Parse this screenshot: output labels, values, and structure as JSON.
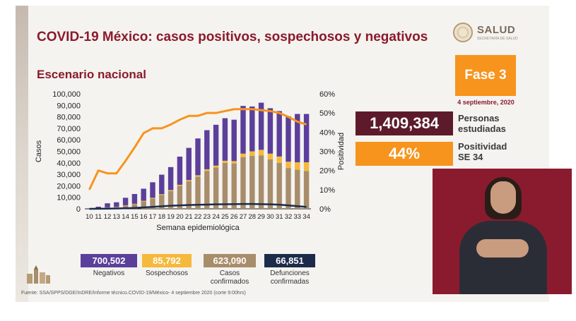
{
  "header": {
    "title": "COVID-19 México: casos positivos, sospechosos y negativos",
    "subtitle": "Escenario nacional"
  },
  "logo": {
    "name": "SALUD",
    "sub": "SECRETARÍA DE SALUD"
  },
  "phase": {
    "label": "Fase 3",
    "date": "4 septiembre, 2020"
  },
  "stats": [
    {
      "value": "1,409,384",
      "label_line1": "Personas",
      "label_line2": "estudiadas",
      "color": "#5c1a2b"
    },
    {
      "value": "44%",
      "label_line1": "Positividad",
      "label_line2": "SE 34",
      "color": "#f7941d"
    }
  ],
  "legend": [
    {
      "value": "700,502",
      "label_line1": "Negativos",
      "label_line2": "",
      "color": "#5b3f9a"
    },
    {
      "value": "85,792",
      "label_line1": "Sospechosos",
      "label_line2": "",
      "color": "#f5b93c"
    },
    {
      "value": "623,090",
      "label_line1": "Casos",
      "label_line2": "confirmados",
      "color": "#a88d6b"
    },
    {
      "value": "66,851",
      "label_line1": "Defunciones",
      "label_line2": "confirmadas",
      "color": "#1c2b4a"
    }
  ],
  "source": "Fuente: SSA/SPPS/DGE/InDRE/Informe técnico.COVID-19/México- 4 septiembre 2020 (corte 9:00hrs)",
  "chart_data": {
    "type": "bar",
    "xlabel": "Semana epidemiológica",
    "ylabel": "Casos",
    "y2label": "Positividad",
    "ylim": [
      0,
      100000
    ],
    "y2lim": [
      0,
      60
    ],
    "yticks": [
      "0",
      "10,000",
      "20,000",
      "30,000",
      "40,000",
      "50,000",
      "60,000",
      "70,000",
      "80,000",
      "90,000",
      "100,000"
    ],
    "y2ticks": [
      "0%",
      "10%",
      "20%",
      "30%",
      "40%",
      "50%",
      "60%"
    ],
    "categories": [
      "10",
      "11",
      "12",
      "13",
      "14",
      "15",
      "16",
      "17",
      "18",
      "19",
      "20",
      "21",
      "22",
      "23",
      "24",
      "25",
      "26",
      "27",
      "28",
      "29",
      "30",
      "31",
      "32",
      "33",
      "34"
    ],
    "series": [
      {
        "name": "Casos confirmados",
        "color": "#a88d6b",
        "values": [
          100,
          600,
          1200,
          1500,
          2800,
          4000,
          6500,
          9000,
          12000,
          15500,
          20000,
          24000,
          28000,
          33000,
          36000,
          40000,
          39500,
          45000,
          46000,
          46500,
          43000,
          40000,
          35500,
          34000,
          33000
        ]
      },
      {
        "name": "Sospechosos",
        "color": "#f5b93c",
        "values": [
          0,
          50,
          100,
          200,
          300,
          400,
          500,
          600,
          700,
          800,
          900,
          1000,
          1200,
          1400,
          1600,
          1800,
          2000,
          3000,
          4000,
          4800,
          5000,
          5500,
          5500,
          6500,
          7500
        ]
      },
      {
        "name": "Negativos",
        "color": "#5b3f9a",
        "values": [
          300,
          1200,
          3500,
          4000,
          6500,
          8500,
          10500,
          13500,
          17000,
          20000,
          24500,
          28000,
          32000,
          34000,
          35500,
          37000,
          36000,
          41500,
          39000,
          41000,
          39500,
          39500,
          39500,
          42000,
          42000
        ]
      },
      {
        "name": "Defunciones confirmadas",
        "type": "line",
        "color": "#1c2b4a",
        "values": [
          0,
          50,
          150,
          300,
          500,
          800,
          1200,
          1700,
          2200,
          2700,
          3000,
          3300,
          3500,
          3700,
          3900,
          4000,
          4100,
          4200,
          4200,
          4100,
          3900,
          3600,
          3000,
          2300,
          1700
        ]
      },
      {
        "name": "Positividad",
        "type": "line",
        "axis": "y2",
        "color": "#f7941d",
        "values": [
          10,
          20,
          18.5,
          18.5,
          25,
          32,
          39.5,
          42,
          42,
          44,
          46.5,
          48.5,
          48.5,
          50,
          50,
          51,
          52,
          52,
          52,
          51.5,
          51,
          50,
          48,
          45.5,
          44
        ]
      }
    ]
  }
}
